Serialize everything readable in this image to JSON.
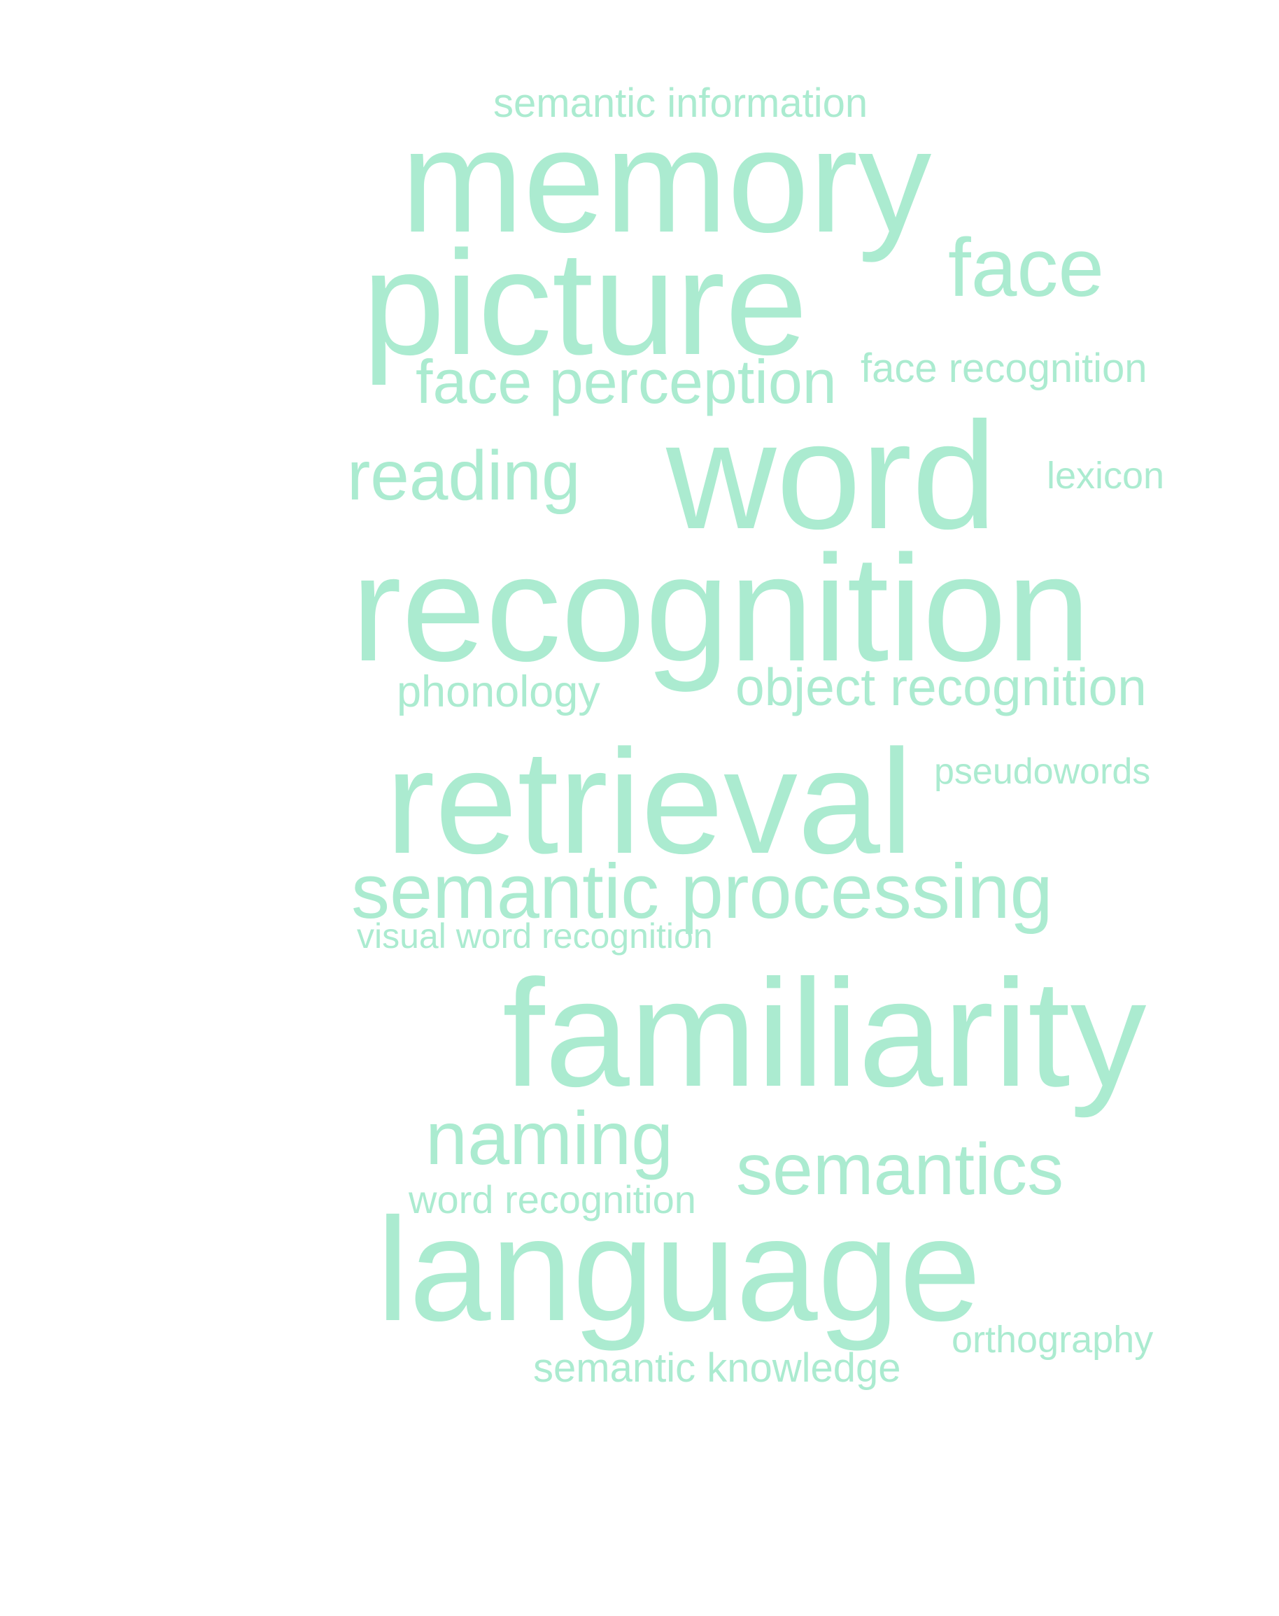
{
  "word_cloud": {
    "color": "#abebd0",
    "words": [
      {
        "text": "semantic information"
      },
      {
        "text": "memory"
      },
      {
        "text": "face"
      },
      {
        "text": "picture"
      },
      {
        "text": "face perception"
      },
      {
        "text": "face recognition"
      },
      {
        "text": "reading"
      },
      {
        "text": "word"
      },
      {
        "text": "lexicon"
      },
      {
        "text": "recognition"
      },
      {
        "text": "phonology"
      },
      {
        "text": "object recognition"
      },
      {
        "text": "retrieval"
      },
      {
        "text": "pseudowords"
      },
      {
        "text": "semantic processing"
      },
      {
        "text": "visual word recognition"
      },
      {
        "text": "familiarity"
      },
      {
        "text": "naming"
      },
      {
        "text": "semantics"
      },
      {
        "text": "word recognition"
      },
      {
        "text": "language"
      },
      {
        "text": "orthography"
      },
      {
        "text": "semantic knowledge"
      }
    ]
  }
}
